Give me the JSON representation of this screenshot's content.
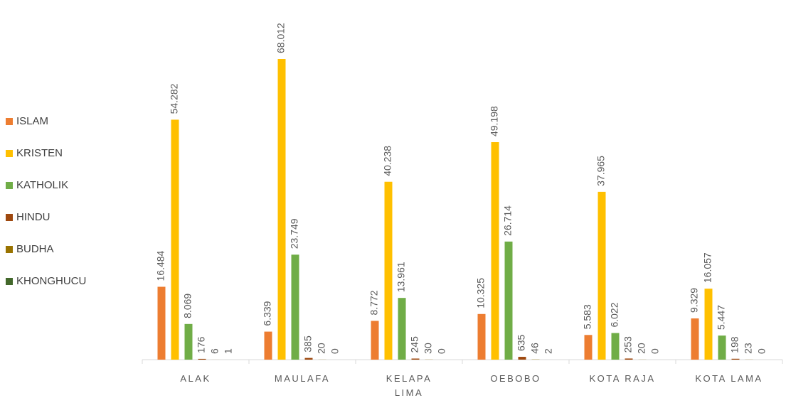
{
  "chart_data": {
    "type": "bar",
    "categories": [
      "ALAK",
      "MAULAFA",
      "KELAPA LIMA",
      "OEBOBO",
      "KOTA RAJA",
      "KOTA LAMA"
    ],
    "series": [
      {
        "name": "ISLAM",
        "color": "#ed7d31",
        "values": [
          16484,
          6339,
          8772,
          10325,
          5583,
          9329
        ],
        "value_labels": [
          "16.484",
          "6.339",
          "8.772",
          "10.325",
          "5.583",
          "9.329"
        ]
      },
      {
        "name": "KRISTEN",
        "color": "#ffc000",
        "values": [
          54282,
          68012,
          40238,
          49198,
          37965,
          16057
        ],
        "value_labels": [
          "54.282",
          "68.012",
          "40.238",
          "49.198",
          "37.965",
          "16.057"
        ]
      },
      {
        "name": "KATHOLIK",
        "color": "#70ad47",
        "values": [
          8069,
          23749,
          13961,
          26714,
          6022,
          5447
        ],
        "value_labels": [
          "8.069",
          "23.749",
          "13.961",
          "26.714",
          "6.022",
          "5.447"
        ]
      },
      {
        "name": "HINDU",
        "color": "#9e480e",
        "values": [
          176,
          385,
          245,
          635,
          253,
          198
        ]
      },
      {
        "name": "BUDHA",
        "color": "#997300",
        "values": [
          6,
          20,
          30,
          46,
          20,
          23
        ]
      },
      {
        "name": "KHONGHUCU",
        "color": "#43682b",
        "values": [
          1,
          0,
          0,
          2,
          0,
          0
        ]
      }
    ],
    "legend": "left"
  }
}
